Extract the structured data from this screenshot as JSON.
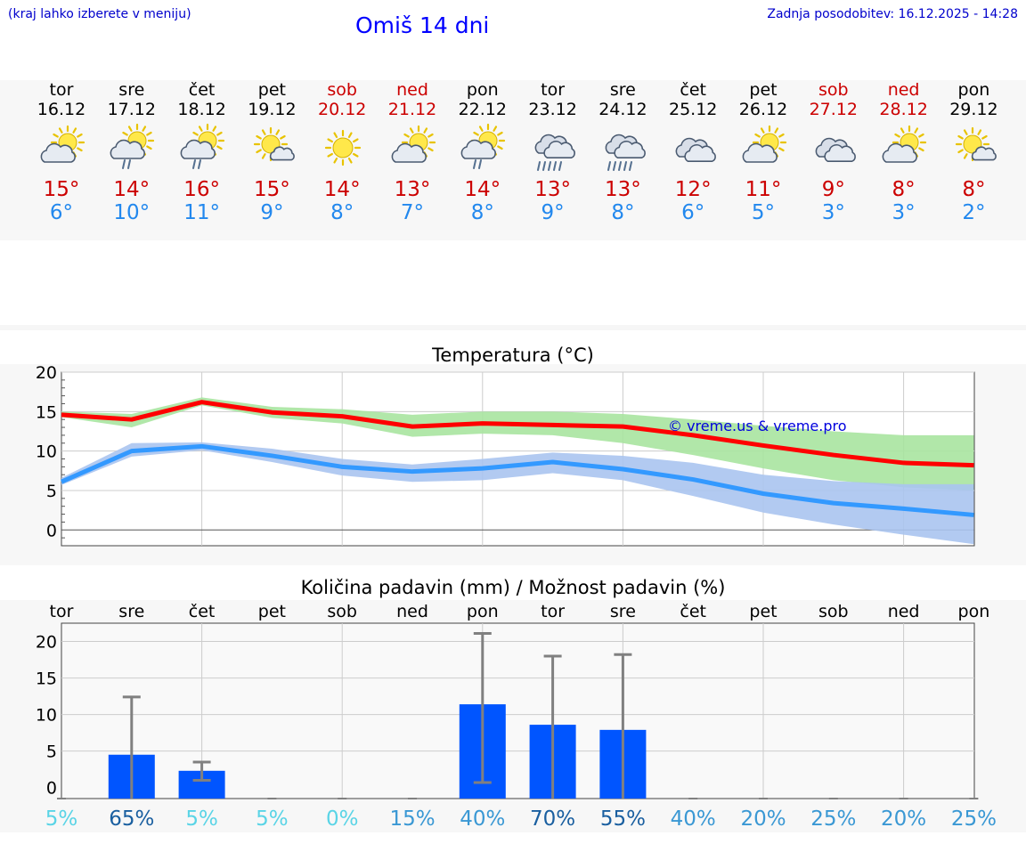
{
  "header": {
    "left_note": "(kraj lahko izberete v meniju)",
    "title": "Omiš 14 dni",
    "updated": "Zadnja posodobitev: 16.12.2025 - 14:28"
  },
  "days": [
    {
      "name": "tor",
      "date": "16.12",
      "weekend": false,
      "icon": "sun-cloud-icon",
      "tmax": "15°",
      "tmin": "6°"
    },
    {
      "name": "sre",
      "date": "17.12",
      "weekend": false,
      "icon": "sun-cloud-rain-icon",
      "tmax": "14°",
      "tmin": "10°"
    },
    {
      "name": "čet",
      "date": "18.12",
      "weekend": false,
      "icon": "sun-cloud-rain-icon",
      "tmax": "16°",
      "tmin": "11°"
    },
    {
      "name": "pet",
      "date": "19.12",
      "weekend": false,
      "icon": "sun-small-cloud-icon",
      "tmax": "15°",
      "tmin": "9°"
    },
    {
      "name": "sob",
      "date": "20.12",
      "weekend": true,
      "icon": "sun-icon",
      "tmax": "14°",
      "tmin": "8°"
    },
    {
      "name": "ned",
      "date": "21.12",
      "weekend": true,
      "icon": "sun-cloud-icon",
      "tmax": "13°",
      "tmin": "7°"
    },
    {
      "name": "pon",
      "date": "22.12",
      "weekend": false,
      "icon": "sun-cloud-rain-icon",
      "tmax": "14°",
      "tmin": "8°"
    },
    {
      "name": "tor",
      "date": "23.12",
      "weekend": false,
      "icon": "cloud-heavy-rain-icon",
      "tmax": "13°",
      "tmin": "9°"
    },
    {
      "name": "sre",
      "date": "24.12",
      "weekend": false,
      "icon": "cloud-heavy-rain-icon",
      "tmax": "13°",
      "tmin": "8°"
    },
    {
      "name": "čet",
      "date": "25.12",
      "weekend": false,
      "icon": "cloud-icon",
      "tmax": "12°",
      "tmin": "6°"
    },
    {
      "name": "pet",
      "date": "26.12",
      "weekend": false,
      "icon": "sun-cloud-icon",
      "tmax": "11°",
      "tmin": "5°"
    },
    {
      "name": "sob",
      "date": "27.12",
      "weekend": true,
      "icon": "cloud-icon",
      "tmax": "9°",
      "tmin": "3°"
    },
    {
      "name": "ned",
      "date": "28.12",
      "weekend": true,
      "icon": "sun-cloud-icon",
      "tmax": "8°",
      "tmin": "3°"
    },
    {
      "name": "pon",
      "date": "29.12",
      "weekend": false,
      "icon": "sun-small-cloud-icon",
      "tmax": "8°",
      "tmin": "2°"
    }
  ],
  "chart_data": [
    {
      "type": "line",
      "title": "Temperatura (°C)",
      "ylim": [
        -2,
        20
      ],
      "yticks": [
        0,
        5,
        10,
        15,
        20
      ],
      "watermark": "© vreme.us & vreme.pro",
      "series": [
        {
          "name": "max",
          "color": "#ff0000",
          "band_color": "#a8e4a0",
          "values": [
            14.6,
            14.0,
            16.2,
            14.9,
            14.4,
            13.1,
            13.5,
            13.3,
            13.1,
            12.0,
            10.7,
            9.5,
            8.5,
            8.2
          ],
          "band_low": [
            14.3,
            13.0,
            15.8,
            14.2,
            13.5,
            11.8,
            12.2,
            12.0,
            11.0,
            9.5,
            7.8,
            6.3,
            5.4,
            5.0
          ],
          "band_high": [
            15.0,
            14.7,
            16.8,
            15.6,
            15.3,
            14.6,
            15.0,
            15.0,
            14.7,
            14.0,
            13.2,
            12.5,
            12.0,
            12.0
          ]
        },
        {
          "name": "min",
          "color": "#3399ff",
          "band_color": "#aac4f0",
          "values": [
            6.1,
            10.0,
            10.6,
            9.4,
            8.0,
            7.4,
            7.8,
            8.6,
            7.7,
            6.4,
            4.6,
            3.4,
            2.7,
            1.9
          ],
          "band_low": [
            5.7,
            9.3,
            10.1,
            8.6,
            6.9,
            6.1,
            6.3,
            7.2,
            6.3,
            4.3,
            2.2,
            0.7,
            -0.6,
            -1.8
          ],
          "band_high": [
            6.6,
            11.0,
            11.1,
            10.3,
            9.0,
            8.3,
            9.0,
            9.8,
            9.4,
            8.5,
            7.0,
            6.2,
            5.8,
            5.8
          ]
        }
      ]
    },
    {
      "type": "bar",
      "title": "Količina padavin (mm) / Možnost padavin (%)",
      "categories": [
        "tor",
        "sre",
        "čet",
        "pet",
        "sob",
        "ned",
        "pon",
        "tor",
        "sre",
        "čet",
        "pet",
        "sob",
        "ned",
        "pon"
      ],
      "ylim": [
        -1.5,
        22.5
      ],
      "yticks": [
        0,
        5,
        10,
        15,
        20
      ],
      "yticklabels": [
        "0",
        "5",
        "10",
        "15",
        "20"
      ],
      "values": [
        0,
        4.5,
        2.3,
        0,
        0,
        0,
        11.4,
        8.6,
        7.9,
        0,
        0,
        0,
        0,
        0
      ],
      "err_low": [
        0,
        0,
        1.0,
        0,
        0,
        0,
        0.7,
        0,
        0,
        0,
        0,
        0,
        0,
        0
      ],
      "err_high": [
        0,
        12.4,
        3.5,
        0,
        0,
        0,
        21.1,
        18.0,
        18.2,
        0,
        0,
        0,
        0,
        0
      ],
      "probability": [
        "5%",
        "65%",
        "5%",
        "5%",
        "0%",
        "15%",
        "40%",
        "70%",
        "55%",
        "40%",
        "20%",
        "25%",
        "20%",
        "25%"
      ],
      "prob_colors": [
        "#5ad4e6",
        "#1a5fa0",
        "#5ad4e6",
        "#5ad4e6",
        "#5ad4e6",
        "#3a98d4",
        "#3a98d4",
        "#1a5fa0",
        "#1a5fa0",
        "#3a98d4",
        "#3a98d4",
        "#3a98d4",
        "#3a98d4",
        "#3a98d4"
      ],
      "bar_color": "#0055ff"
    }
  ]
}
